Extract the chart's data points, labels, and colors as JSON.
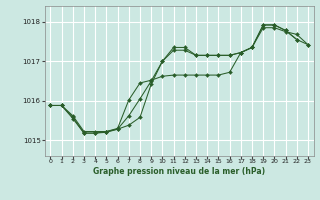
{
  "title": "Graphe pression niveau de la mer (hPa)",
  "bg_color": "#cce8e2",
  "grid_color": "#ffffff",
  "line_color": "#2a5e2a",
  "xlim": [
    -0.5,
    23.5
  ],
  "ylim": [
    1014.6,
    1018.4
  ],
  "x_ticks": [
    0,
    1,
    2,
    3,
    4,
    5,
    6,
    7,
    8,
    9,
    10,
    11,
    12,
    13,
    14,
    15,
    16,
    17,
    18,
    19,
    20,
    21,
    22,
    23
  ],
  "y_ticks": [
    1015,
    1016,
    1017,
    1018
  ],
  "series1_x": [
    0,
    1,
    2,
    3,
    4,
    5,
    6,
    7,
    8,
    9,
    10,
    11,
    12,
    13,
    14,
    15,
    16,
    17,
    18,
    19,
    20,
    21,
    22
  ],
  "series1_y": [
    1015.88,
    1015.88,
    1015.58,
    1015.18,
    1015.18,
    1015.2,
    1015.28,
    1015.62,
    1016.05,
    1016.5,
    1017.0,
    1017.35,
    1017.35,
    1017.15,
    1017.15,
    1017.15,
    1017.15,
    1017.22,
    1017.35,
    1017.92,
    1017.92,
    1017.78,
    1017.55
  ],
  "series2_x": [
    0,
    1,
    2,
    3,
    4,
    5,
    6,
    7,
    8,
    9,
    10,
    11,
    12,
    13,
    14,
    15,
    16,
    17,
    18,
    19,
    20,
    21,
    22,
    23
  ],
  "series2_y": [
    1015.88,
    1015.88,
    1015.55,
    1015.18,
    1015.18,
    1015.22,
    1015.28,
    1015.38,
    1015.58,
    1016.42,
    1017.0,
    1017.28,
    1017.28,
    1017.15,
    1017.15,
    1017.15,
    1017.15,
    1017.22,
    1017.35,
    1017.92,
    1017.92,
    1017.78,
    1017.55,
    1017.42
  ],
  "series3_x": [
    0,
    1,
    2,
    3,
    4,
    5,
    6,
    7,
    8,
    9,
    10,
    11,
    12,
    13,
    14,
    15,
    16,
    17,
    18,
    19,
    20,
    21,
    22,
    23
  ],
  "series3_y": [
    1015.88,
    1015.88,
    1015.62,
    1015.22,
    1015.22,
    1015.22,
    1015.3,
    1016.02,
    1016.45,
    1016.52,
    1016.62,
    1016.65,
    1016.65,
    1016.65,
    1016.65,
    1016.65,
    1016.72,
    1017.22,
    1017.35,
    1017.85,
    1017.85,
    1017.75,
    1017.68,
    1017.42
  ]
}
